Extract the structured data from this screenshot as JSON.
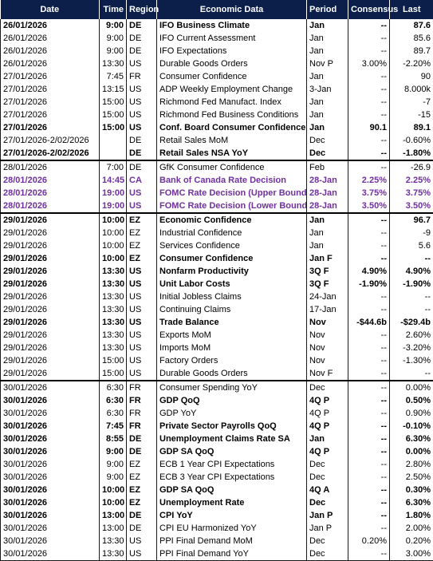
{
  "headers": {
    "date": "Date",
    "time": "Time",
    "region": "Region",
    "data": "Economic Data",
    "period": "Period",
    "consensus": "Consensus",
    "last": "Last"
  },
  "rows": [
    {
      "date": "26/01/2026",
      "time": "9:00",
      "region": "DE",
      "data": "IFO Business Climate",
      "period": "Jan",
      "consensus": "--",
      "last": "87.6",
      "style": "bold"
    },
    {
      "date": "26/01/2026",
      "time": "9:00",
      "region": "DE",
      "data": "IFO Current Assessment",
      "period": "Jan",
      "consensus": "--",
      "last": "85.6",
      "style": ""
    },
    {
      "date": "26/01/2026",
      "time": "9:00",
      "region": "DE",
      "data": "IFO Expectations",
      "period": "Jan",
      "consensus": "--",
      "last": "89.7",
      "style": ""
    },
    {
      "date": "26/01/2026",
      "time": "13:30",
      "region": "US",
      "data": "Durable Goods Orders",
      "period": "Nov P",
      "consensus": "3.00%",
      "last": "-2.20%",
      "style": ""
    },
    {
      "date": "27/01/2026",
      "time": "7:45",
      "region": "FR",
      "data": "Consumer Confidence",
      "period": "Jan",
      "consensus": "--",
      "last": "90",
      "style": ""
    },
    {
      "date": "27/01/2026",
      "time": "13:15",
      "region": "US",
      "data": "ADP Weekly Employment Change",
      "period": "3-Jan",
      "consensus": "--",
      "last": "8.000k",
      "style": ""
    },
    {
      "date": "27/01/2026",
      "time": "15:00",
      "region": "US",
      "data": "Richmond Fed Manufact. Index",
      "period": "Jan",
      "consensus": "--",
      "last": "-7",
      "style": ""
    },
    {
      "date": "27/01/2026",
      "time": "15:00",
      "region": "US",
      "data": "Richmond Fed Business Conditions",
      "period": "Jan",
      "consensus": "--",
      "last": "-15",
      "style": ""
    },
    {
      "date": "27/01/2026",
      "time": "15:00",
      "region": "US",
      "data": "Conf. Board Consumer Confidence",
      "period": "Jan",
      "consensus": "90.1",
      "last": "89.1",
      "style": "bold"
    },
    {
      "date": "27/01/2026-2/02/2026",
      "time": "",
      "region": "DE",
      "data": "Retail Sales MoM",
      "period": "Dec",
      "consensus": "--",
      "last": "-0.60%",
      "style": ""
    },
    {
      "date": "27/01/2026-2/02/2026",
      "time": "",
      "region": "DE",
      "data": "Retail Sales NSA YoY",
      "period": "Dec",
      "consensus": "--",
      "last": "-1.80%",
      "style": "bold"
    },
    {
      "date": "28/01/2026",
      "time": "7:00",
      "region": "DE",
      "data": "GfK Consumer Confidence",
      "period": "Feb",
      "consensus": "--",
      "last": "-26.9",
      "style": "sep"
    },
    {
      "date": "28/01/2026",
      "time": "14:45",
      "region": "CA",
      "data": "Bank of Canada Rate Decision",
      "period": "28-Jan",
      "consensus": "2.25%",
      "last": "2.25%",
      "style": "purple"
    },
    {
      "date": "28/01/2026",
      "time": "19:00",
      "region": "US",
      "data": "FOMC Rate Decision (Upper Bound)",
      "period": "28-Jan",
      "consensus": "3.75%",
      "last": "3.75%",
      "style": "purple"
    },
    {
      "date": "28/01/2026",
      "time": "19:00",
      "region": "US",
      "data": "FOMC Rate Decision (Lower Bound)",
      "period": "28-Jan",
      "consensus": "3.50%",
      "last": "3.50%",
      "style": "purple"
    },
    {
      "date": "29/01/2026",
      "time": "10:00",
      "region": "EZ",
      "data": "Economic Confidence",
      "period": "Jan",
      "consensus": "--",
      "last": "96.7",
      "style": "bold sep"
    },
    {
      "date": "29/01/2026",
      "time": "10:00",
      "region": "EZ",
      "data": "Industrial Confidence",
      "period": "Jan",
      "consensus": "--",
      "last": "-9",
      "style": ""
    },
    {
      "date": "29/01/2026",
      "time": "10:00",
      "region": "EZ",
      "data": "Services Confidence",
      "period": "Jan",
      "consensus": "--",
      "last": "5.6",
      "style": ""
    },
    {
      "date": "29/01/2026",
      "time": "10:00",
      "region": "EZ",
      "data": "Consumer Confidence",
      "period": "Jan F",
      "consensus": "--",
      "last": "--",
      "style": "bold"
    },
    {
      "date": "29/01/2026",
      "time": "13:30",
      "region": "US",
      "data": "Nonfarm Productivity",
      "period": "3Q F",
      "consensus": "4.90%",
      "last": "4.90%",
      "style": "bold"
    },
    {
      "date": "29/01/2026",
      "time": "13:30",
      "region": "US",
      "data": "Unit Labor Costs",
      "period": "3Q F",
      "consensus": "-1.90%",
      "last": "-1.90%",
      "style": "bold"
    },
    {
      "date": "29/01/2026",
      "time": "13:30",
      "region": "US",
      "data": "Initial Jobless Claims",
      "period": "24-Jan",
      "consensus": "--",
      "last": "--",
      "style": ""
    },
    {
      "date": "29/01/2026",
      "time": "13:30",
      "region": "US",
      "data": "Continuing Claims",
      "period": "17-Jan",
      "consensus": "--",
      "last": "--",
      "style": ""
    },
    {
      "date": "29/01/2026",
      "time": "13:30",
      "region": "US",
      "data": "Trade Balance",
      "period": "Nov",
      "consensus": "-$44.6b",
      "last": "-$29.4b",
      "style": "bold"
    },
    {
      "date": "29/01/2026",
      "time": "13:30",
      "region": "US",
      "data": "Exports MoM",
      "period": "Nov",
      "consensus": "--",
      "last": "2.60%",
      "style": ""
    },
    {
      "date": "29/01/2026",
      "time": "13:30",
      "region": "US",
      "data": "Imports MoM",
      "period": "Nov",
      "consensus": "--",
      "last": "-3.20%",
      "style": ""
    },
    {
      "date": "29/01/2026",
      "time": "15:00",
      "region": "US",
      "data": "Factory Orders",
      "period": "Nov",
      "consensus": "--",
      "last": "-1.30%",
      "style": ""
    },
    {
      "date": "29/01/2026",
      "time": "15:00",
      "region": "US",
      "data": "Durable Goods Orders",
      "period": "Nov F",
      "consensus": "--",
      "last": "--",
      "style": ""
    },
    {
      "date": "30/01/2026",
      "time": "6:30",
      "region": "FR",
      "data": "Consumer Spending YoY",
      "period": "Dec",
      "consensus": "--",
      "last": "0.00%",
      "style": "sep"
    },
    {
      "date": "30/01/2026",
      "time": "6:30",
      "region": "FR",
      "data": "GDP QoQ",
      "period": "4Q P",
      "consensus": "--",
      "last": "0.50%",
      "style": "bold"
    },
    {
      "date": "30/01/2026",
      "time": "6:30",
      "region": "FR",
      "data": "GDP YoY",
      "period": "4Q P",
      "consensus": "--",
      "last": "0.90%",
      "style": ""
    },
    {
      "date": "30/01/2026",
      "time": "7:45",
      "region": "FR",
      "data": "Private Sector Payrolls QoQ",
      "period": "4Q P",
      "consensus": "--",
      "last": "-0.10%",
      "style": "bold"
    },
    {
      "date": "30/01/2026",
      "time": "8:55",
      "region": "DE",
      "data": "Unemployment Claims Rate SA",
      "period": "Jan",
      "consensus": "--",
      "last": "6.30%",
      "style": "bold"
    },
    {
      "date": "30/01/2026",
      "time": "9:00",
      "region": "DE",
      "data": "GDP SA QoQ",
      "period": "4Q P",
      "consensus": "--",
      "last": "0.00%",
      "style": "bold"
    },
    {
      "date": "30/01/2026",
      "time": "9:00",
      "region": "EZ",
      "data": "ECB 1 Year CPI Expectations",
      "period": "Dec",
      "consensus": "--",
      "last": "2.80%",
      "style": ""
    },
    {
      "date": "30/01/2026",
      "time": "9:00",
      "region": "EZ",
      "data": "ECB 3 Year CPI Expectations",
      "period": "Dec",
      "consensus": "--",
      "last": "2.50%",
      "style": ""
    },
    {
      "date": "30/01/2026",
      "time": "10:00",
      "region": "EZ",
      "data": "GDP SA QoQ",
      "period": "4Q A",
      "consensus": "--",
      "last": "0.30%",
      "style": "bold"
    },
    {
      "date": "30/01/2026",
      "time": "10:00",
      "region": "EZ",
      "data": "Unemployment Rate",
      "period": "Dec",
      "consensus": "--",
      "last": "6.30%",
      "style": "bold"
    },
    {
      "date": "30/01/2026",
      "time": "13:00",
      "region": "DE",
      "data": "CPI YoY",
      "period": "Jan P",
      "consensus": "--",
      "last": "1.80%",
      "style": "bold"
    },
    {
      "date": "30/01/2026",
      "time": "13:00",
      "region": "DE",
      "data": "CPI EU Harmonized YoY",
      "period": "Jan P",
      "consensus": "--",
      "last": "2.00%",
      "style": ""
    },
    {
      "date": "30/01/2026",
      "time": "13:30",
      "region": "US",
      "data": "PPI Final Demand MoM",
      "period": "Dec",
      "consensus": "0.20%",
      "last": "0.20%",
      "style": ""
    },
    {
      "date": "30/01/2026",
      "time": "13:30",
      "region": "US",
      "data": "PPI Final Demand YoY",
      "period": "Dec",
      "consensus": "--",
      "last": "3.00%",
      "style": "last"
    }
  ]
}
